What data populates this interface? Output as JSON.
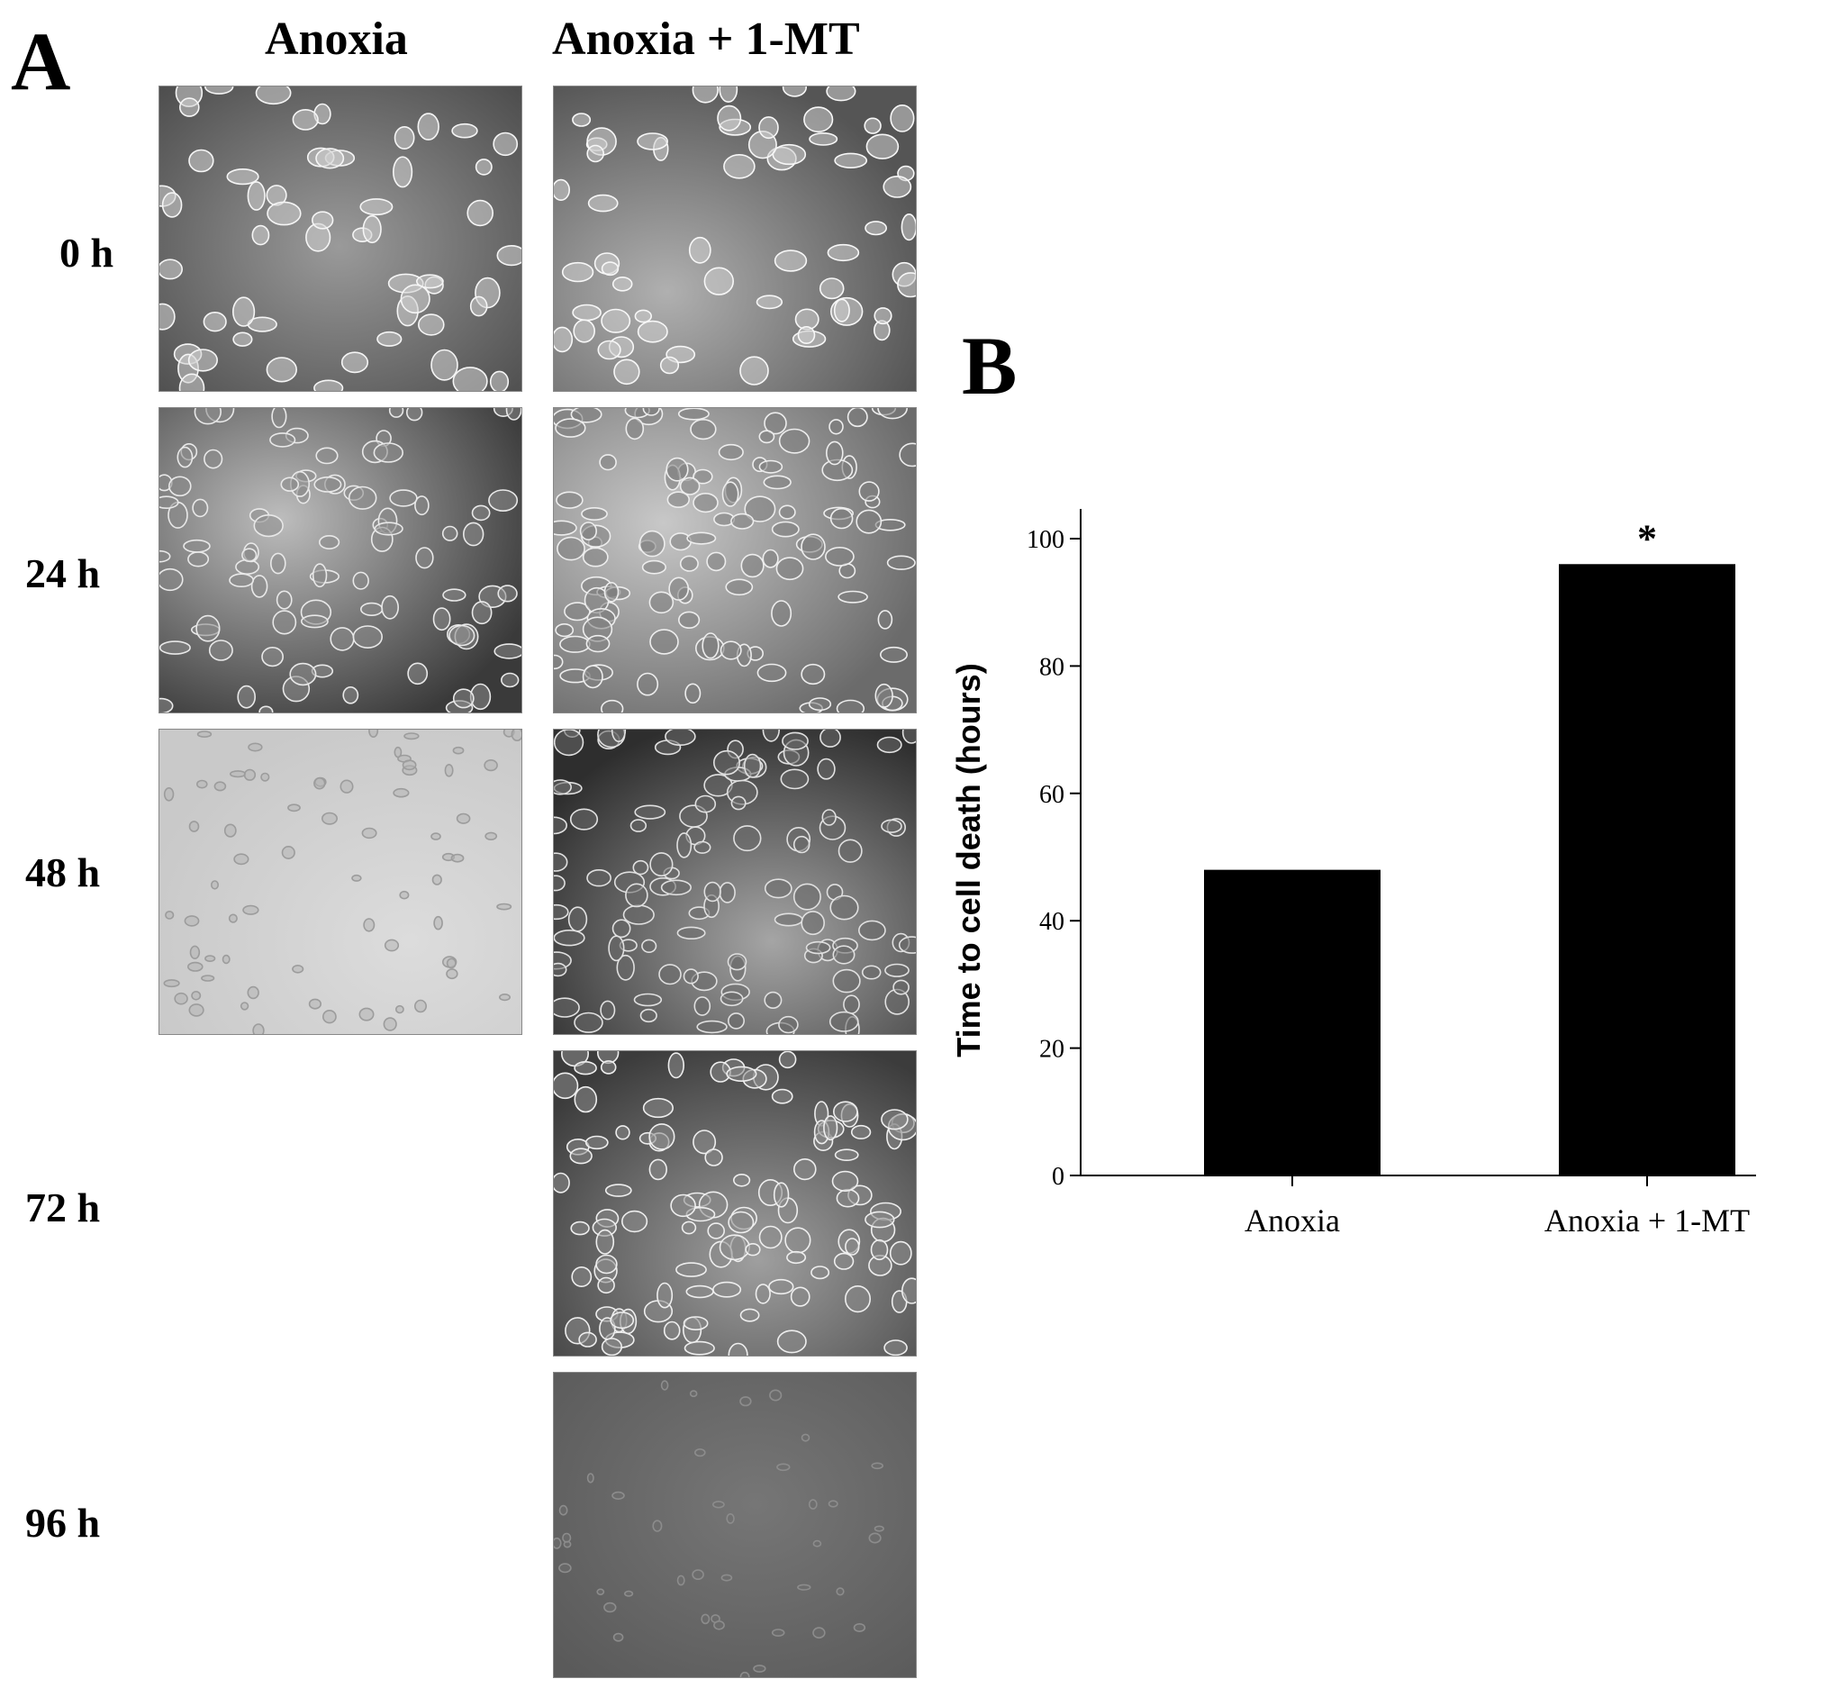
{
  "panel_a": {
    "letter": "A",
    "columns": [
      "Anoxia",
      "Anoxia + 1-MT"
    ],
    "rows": [
      "0 h",
      "24 h",
      "48 h",
      "72 h",
      "96 h"
    ],
    "images": {
      "anoxia": [
        "0 h",
        "24 h",
        "48 h"
      ],
      "anoxia_1mt": [
        "0 h",
        "24 h",
        "48 h",
        "72 h",
        "96 h"
      ]
    }
  },
  "panel_b": {
    "letter": "B"
  },
  "chart_data": {
    "type": "bar",
    "categories": [
      "Anoxia",
      "Anoxia + 1-MT"
    ],
    "values": [
      48,
      96
    ],
    "ylabel": "Time to cell death (hours)",
    "xlabel": "",
    "ylim": [
      0,
      100
    ],
    "yticks": [
      0,
      20,
      40,
      60,
      80,
      100
    ],
    "annotations": [
      {
        "category": "Anoxia + 1-MT",
        "text": "*"
      }
    ],
    "bar_color": "#000000",
    "grid": false
  }
}
